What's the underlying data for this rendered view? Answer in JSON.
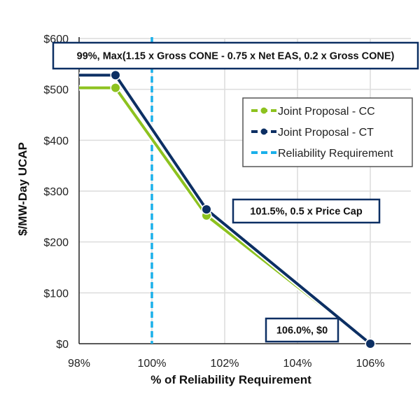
{
  "chart_data": {
    "type": "line",
    "title": "",
    "xlabel": "% of Reliability Requirement",
    "ylabel": "$/MW-Day UCAP",
    "xlim": [
      98,
      107
    ],
    "ylim": [
      0,
      600
    ],
    "x_ticks": [
      98,
      100,
      102,
      104,
      106
    ],
    "x_tick_labels": [
      "98%",
      "100%",
      "102%",
      "104%",
      "106%"
    ],
    "y_ticks": [
      0,
      100,
      200,
      300,
      400,
      500,
      600
    ],
    "y_tick_labels": [
      "$0",
      "$100",
      "$200",
      "$300",
      "$400",
      "$500",
      "$600"
    ],
    "grid": true,
    "series": [
      {
        "name": "Joint Proposal - CC",
        "color": "#8dc21f",
        "x": [
          98,
          99,
          101.5,
          106
        ],
        "y": [
          503,
          503,
          252,
          0
        ],
        "markers_at": [
          99,
          101.5,
          106
        ]
      },
      {
        "name": "Joint Proposal - CT",
        "color": "#0c2f63",
        "x": [
          98,
          99,
          101.5,
          106
        ],
        "y": [
          528,
          528,
          264,
          0
        ],
        "markers_at": [
          99,
          101.5,
          106
        ]
      }
    ],
    "reference_lines": [
      {
        "name": "Reliability Requirement",
        "orientation": "vertical",
        "x": 100,
        "color": "#1ab0ea",
        "style": "dashed"
      }
    ],
    "legend": {
      "position": "right-upper",
      "entries": [
        "Joint Proposal - CC",
        "Joint Proposal - CT",
        "Reliability Requirement"
      ]
    },
    "annotations": [
      {
        "text": "99%, Max(1.15 x Gross CONE - 0.75 x Net EAS, 0.2 x Gross CONE)",
        "x": 99,
        "y": 575
      },
      {
        "text": "101.5%, 0.5 x Price Cap",
        "x": 101.5,
        "y": 264
      },
      {
        "text": "106.0%, $0",
        "x": 106,
        "y": 0
      }
    ]
  }
}
